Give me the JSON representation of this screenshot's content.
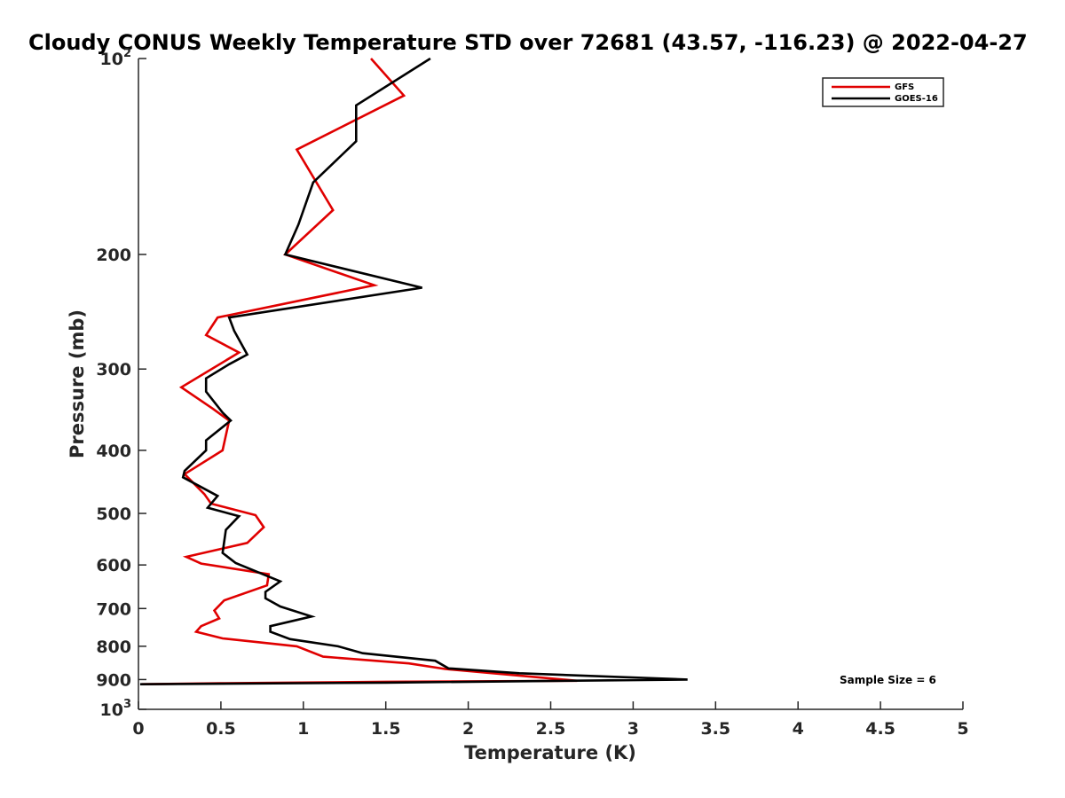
{
  "chart_data": {
    "type": "line",
    "title": "Cloudy CONUS Weekly Temperature STD over 72681 (43.57, -116.23) @ 2022-04-27",
    "xlabel": "Temperature (K)",
    "ylabel": "Pressure (mb)",
    "xlim": [
      0,
      5
    ],
    "ylim": [
      100,
      1000
    ],
    "y_scale": "log",
    "y_reversed": true,
    "grid": false,
    "legend_position": "top-right",
    "x_ticks": [
      "0",
      "0.5",
      "1",
      "1.5",
      "2",
      "2.5",
      "3",
      "3.5",
      "4",
      "4.5",
      "5"
    ],
    "x_tick_values": [
      0,
      0.5,
      1,
      1.5,
      2,
      2.5,
      3,
      3.5,
      4,
      4.5,
      5
    ],
    "y_ticks": [
      {
        "value": 100,
        "base": "10",
        "exp": "2"
      },
      {
        "value": 200,
        "label": "200"
      },
      {
        "value": 300,
        "label": "300"
      },
      {
        "value": 400,
        "label": "400"
      },
      {
        "value": 500,
        "label": "500"
      },
      {
        "value": 600,
        "label": "600"
      },
      {
        "value": 700,
        "label": "700"
      },
      {
        "value": 800,
        "label": "800"
      },
      {
        "value": 900,
        "label": "900"
      },
      {
        "value": 1000,
        "base": "10",
        "exp": "3"
      }
    ],
    "annotation": "Sample Size = 6",
    "series": [
      {
        "name": "GFS",
        "color": "#e00000",
        "points": [
          [
            1.41,
            100
          ],
          [
            1.61,
            114
          ],
          [
            0.96,
            138
          ],
          [
            1.18,
            171
          ],
          [
            0.89,
            200
          ],
          [
            1.43,
            223
          ],
          [
            0.48,
            250
          ],
          [
            0.41,
            266
          ],
          [
            0.61,
            283
          ],
          [
            0.26,
            320
          ],
          [
            0.45,
            345
          ],
          [
            0.55,
            360
          ],
          [
            0.51,
            400
          ],
          [
            0.28,
            435
          ],
          [
            0.4,
            467
          ],
          [
            0.44,
            483
          ],
          [
            0.71,
            503
          ],
          [
            0.76,
            525
          ],
          [
            0.66,
            555
          ],
          [
            0.29,
            583
          ],
          [
            0.38,
            597
          ],
          [
            0.79,
            620
          ],
          [
            0.78,
            645
          ],
          [
            0.52,
            680
          ],
          [
            0.46,
            705
          ],
          [
            0.49,
            725
          ],
          [
            0.38,
            745
          ],
          [
            0.35,
            760
          ],
          [
            0.51,
            778
          ],
          [
            0.96,
            800
          ],
          [
            1.12,
            830
          ],
          [
            1.64,
            850
          ],
          [
            1.86,
            867
          ],
          [
            2.66,
            904
          ],
          [
            1.5,
            907
          ],
          [
            0.5,
            912
          ],
          [
            0.02,
            915
          ]
        ]
      },
      {
        "name": "GOES-16",
        "color": "#000000",
        "points": [
          [
            1.77,
            100
          ],
          [
            1.32,
            118
          ],
          [
            1.32,
            134
          ],
          [
            1.06,
            155
          ],
          [
            0.97,
            180
          ],
          [
            0.89,
            200
          ],
          [
            1.72,
            225
          ],
          [
            0.55,
            250
          ],
          [
            0.58,
            262
          ],
          [
            0.66,
            285
          ],
          [
            0.55,
            295
          ],
          [
            0.41,
            310
          ],
          [
            0.41,
            325
          ],
          [
            0.51,
            350
          ],
          [
            0.56,
            360
          ],
          [
            0.41,
            386
          ],
          [
            0.41,
            400
          ],
          [
            0.28,
            430
          ],
          [
            0.27,
            440
          ],
          [
            0.48,
            470
          ],
          [
            0.42,
            490
          ],
          [
            0.61,
            505
          ],
          [
            0.53,
            530
          ],
          [
            0.51,
            575
          ],
          [
            0.59,
            596
          ],
          [
            0.86,
            636
          ],
          [
            0.77,
            660
          ],
          [
            0.77,
            675
          ],
          [
            0.86,
            695
          ],
          [
            1.05,
            720
          ],
          [
            0.8,
            745
          ],
          [
            0.8,
            760
          ],
          [
            0.92,
            780
          ],
          [
            1.21,
            800
          ],
          [
            1.36,
            820
          ],
          [
            1.8,
            842
          ],
          [
            1.88,
            865
          ],
          [
            2.31,
            880
          ],
          [
            3.33,
            900
          ],
          [
            1.5,
            910
          ],
          [
            0.01,
            915
          ]
        ]
      }
    ]
  }
}
